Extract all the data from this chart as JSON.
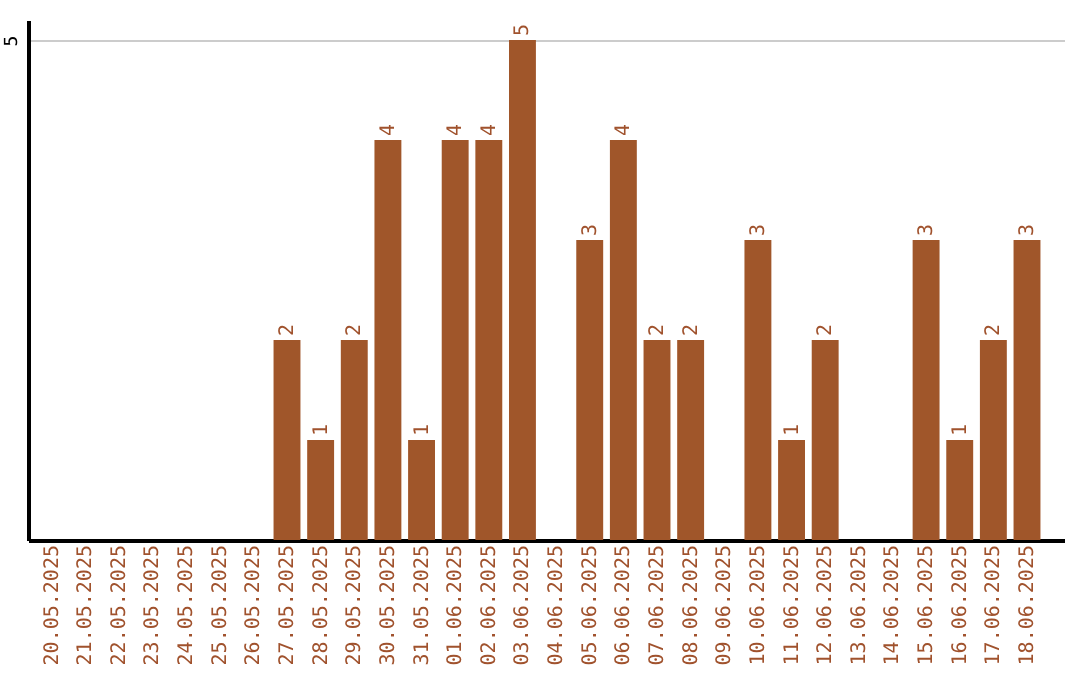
{
  "chart_data": {
    "type": "bar",
    "categories": [
      "20.05.2025",
      "21.05.2025",
      "22.05.2025",
      "23.05.2025",
      "24.05.2025",
      "25.05.2025",
      "26.05.2025",
      "27.05.2025",
      "28.05.2025",
      "29.05.2025",
      "30.05.2025",
      "31.05.2025",
      "01.06.2025",
      "02.06.2025",
      "03.06.2025",
      "04.06.2025",
      "05.06.2025",
      "06.06.2025",
      "07.06.2025",
      "08.06.2025",
      "09.06.2025",
      "10.06.2025",
      "11.06.2025",
      "12.06.2025",
      "13.06.2025",
      "14.06.2025",
      "15.06.2025",
      "16.06.2025",
      "17.06.2025",
      "18.06.2025"
    ],
    "values": [
      0,
      0,
      0,
      0,
      0,
      0,
      0,
      2,
      1,
      2,
      4,
      1,
      4,
      4,
      5,
      0,
      3,
      4,
      2,
      2,
      0,
      3,
      1,
      2,
      0,
      0,
      3,
      1,
      2,
      3
    ],
    "value_labels": [
      null,
      null,
      null,
      null,
      null,
      null,
      null,
      "2",
      "1",
      "2",
      "4",
      "1",
      "4",
      "4",
      "5",
      null,
      "3",
      "4",
      "2",
      "2",
      null,
      "3",
      "1",
      "2",
      null,
      null,
      "3",
      "1",
      "2",
      "3"
    ],
    "color": "#a0562a",
    "ylim": [
      0,
      5.2
    ],
    "yticks": [
      5
    ],
    "grid": "y"
  }
}
